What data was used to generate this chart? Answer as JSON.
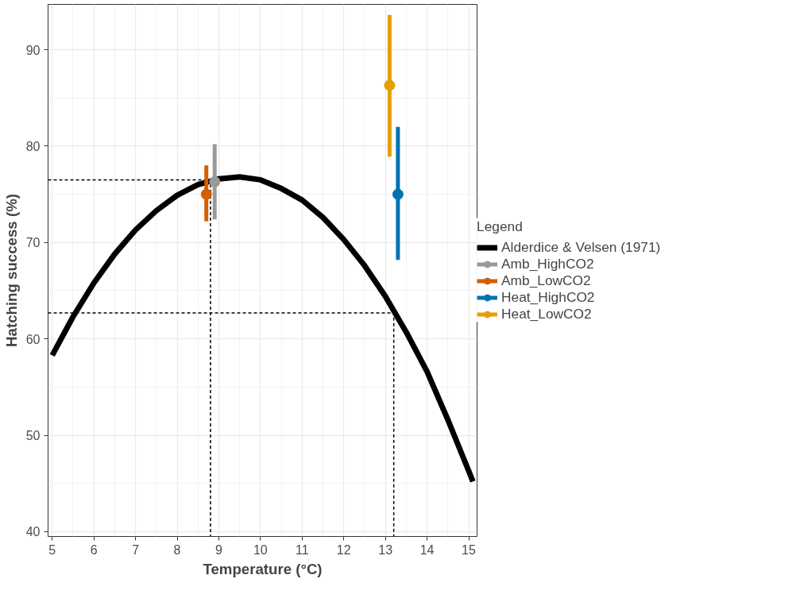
{
  "chart_data": {
    "type": "scatter",
    "xlabel": "Temperature (°C)",
    "ylabel": "Hatching success (%)",
    "legend_title": "Legend",
    "xlim": [
      4.9,
      15.2
    ],
    "ylim": [
      39.5,
      94.7
    ],
    "xticks": [
      5,
      6,
      7,
      8,
      9,
      10,
      11,
      12,
      13,
      14,
      15
    ],
    "yticks": [
      40,
      50,
      60,
      70,
      80,
      90
    ],
    "grid": true,
    "legend": "right",
    "series": [
      {
        "type": "line",
        "name": "Alderdice & Velsen (1971)",
        "color": "#000000",
        "x": [
          5,
          5.5,
          6,
          6.5,
          7,
          7.5,
          8,
          8.5,
          9,
          9.5,
          10,
          10.5,
          11,
          11.5,
          12,
          12.5,
          13,
          13.5,
          14,
          14.5,
          15,
          15.1
        ],
        "values": [
          58.3,
          62.3,
          65.8,
          68.8,
          71.3,
          73.3,
          74.9,
          76.0,
          76.6,
          76.8,
          76.5,
          75.6,
          74.4,
          72.6,
          70.3,
          67.6,
          64.4,
          60.7,
          56.6,
          51.6,
          46.3,
          45.2
        ]
      },
      {
        "type": "line",
        "line_style": "dashed",
        "color": "#000000",
        "x": [
          4.9,
          8.8,
          8.8
        ],
        "values": [
          76.5,
          76.5,
          39.5
        ]
      },
      {
        "type": "line",
        "line_style": "dashed",
        "color": "#000000",
        "x": [
          4.9,
          13.2,
          13.2
        ],
        "values": [
          62.7,
          62.7,
          39.5
        ]
      },
      {
        "marker": "circle",
        "name": "Amb_HighCO2",
        "color": "#999999",
        "x": [
          8.9
        ],
        "values": [
          76.3
        ],
        "errors": [
          [
            72.4,
            80.2
          ]
        ]
      },
      {
        "marker": "circle",
        "name": "Amb_LowCO2",
        "color": "#d55e00",
        "x": [
          8.7
        ],
        "values": [
          75.0
        ],
        "errors": [
          [
            72.2,
            78.0
          ]
        ]
      },
      {
        "marker": "circle",
        "name": "Heat_HighCO2",
        "color": "#0072b2",
        "x": [
          13.3
        ],
        "values": [
          75.0
        ],
        "errors": [
          [
            68.2,
            82.0
          ]
        ]
      },
      {
        "marker": "circle",
        "name": "Heat_LowCO2",
        "color": "#e69f00",
        "x": [
          13.1
        ],
        "values": [
          86.3
        ],
        "errors": [
          [
            78.9,
            93.6
          ]
        ]
      }
    ]
  }
}
